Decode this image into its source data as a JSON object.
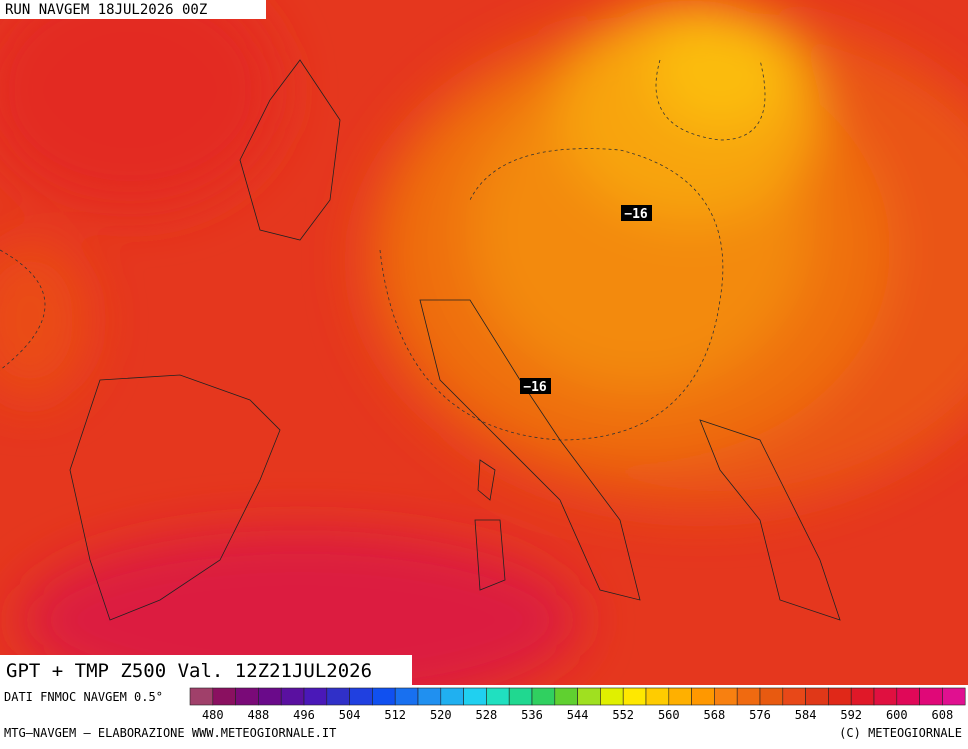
{
  "header": {
    "run": "RUN NAVGEM 18JUL2026 00Z"
  },
  "map": {
    "labels": [
      "−16",
      "−16"
    ]
  },
  "footer": {
    "title": "GPT + TMP Z500 Val. 12Z21JUL2026",
    "source": "DATI FNMOC NAVGEM 0.5°",
    "credits_left": "MTG–NAVGEM – ELABORAZIONE WWW.METEOGIORNALE.IT",
    "credits_right": "(C) METEOGIORNALE"
  },
  "legend": {
    "labels": [
      "480",
      "488",
      "496",
      "504",
      "512",
      "520",
      "528",
      "536",
      "544",
      "552",
      "560",
      "568",
      "576",
      "584",
      "592",
      "600",
      "608"
    ]
  }
}
